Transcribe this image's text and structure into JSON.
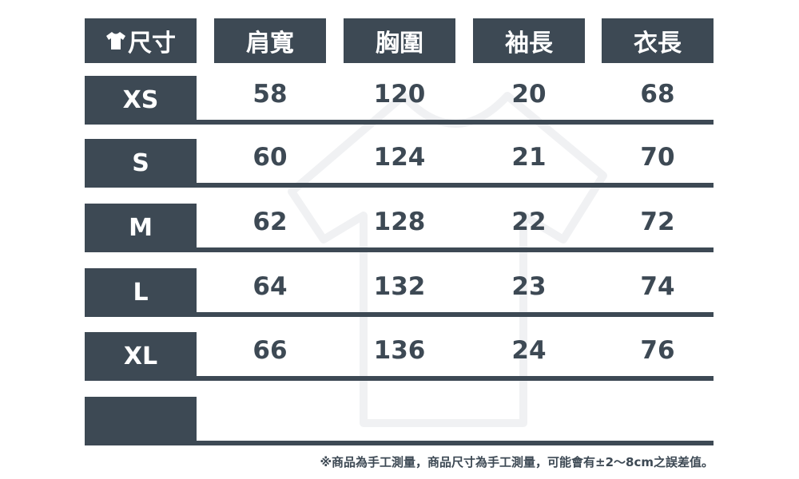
{
  "header": {
    "icon": "tshirt-icon",
    "columns": [
      "尺寸",
      "肩寬",
      "胸圍",
      "袖長",
      "衣長"
    ]
  },
  "rows": [
    {
      "size": "XS",
      "values": [
        "58",
        "120",
        "20",
        "68"
      ]
    },
    {
      "size": "S",
      "values": [
        "60",
        "124",
        "21",
        "70"
      ]
    },
    {
      "size": "M",
      "values": [
        "62",
        "128",
        "22",
        "72"
      ]
    },
    {
      "size": "L",
      "values": [
        "64",
        "132",
        "23",
        "74"
      ]
    },
    {
      "size": "XL",
      "values": [
        "66",
        "136",
        "24",
        "76"
      ]
    },
    {
      "size": "",
      "values": [
        "",
        "",
        "",
        ""
      ]
    }
  ],
  "note": "※商品為手工測量，商品尺寸為手工測量，可能會有±2～8cm之誤差值。",
  "colors": {
    "primary": "#3d4954",
    "background": "#ffffff"
  }
}
